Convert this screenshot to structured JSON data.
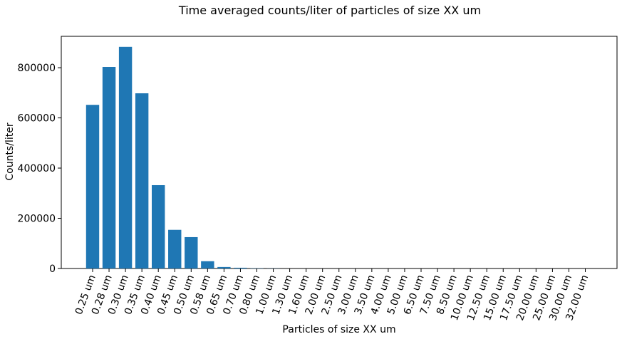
{
  "chart_data": {
    "type": "bar",
    "title": "Time averaged counts/liter of particles of size XX um",
    "xlabel": "Particles of size XX um",
    "ylabel": "Counts/liter",
    "ylim": [
      0,
      925000
    ],
    "yticks": [
      0,
      200000,
      400000,
      600000,
      800000
    ],
    "ytick_labels": [
      "0",
      "200000",
      "400000",
      "600000",
      "800000"
    ],
    "grid": false,
    "bar_color": "#1f77b4",
    "categories": [
      "0.25 um",
      "0.28 um",
      "0.30 um",
      "0.35 um",
      "0.40 um",
      "0.45 um",
      "0.50 um",
      "0.58 um",
      "0.65 um",
      "0.70 um",
      "0.80 um",
      "1.00 um",
      "1.30 um",
      "1.60 um",
      "2.00 um",
      "2.50 um",
      "3.00 um",
      "3.50 um",
      "4.00 um",
      "5.00 um",
      "6.50 um",
      "7.50 um",
      "8.50 um",
      "10.00 um",
      "12.50 um",
      "15.00 um",
      "17.50 um",
      "20.00 um",
      "25.00 um",
      "30.00 um",
      "32.00 um"
    ],
    "values": [
      652000,
      803000,
      883000,
      698000,
      332000,
      154000,
      125000,
      29000,
      6000,
      3000,
      1000,
      500,
      0,
      0,
      0,
      0,
      0,
      0,
      0,
      0,
      0,
      0,
      0,
      0,
      0,
      0,
      0,
      0,
      0,
      0,
      0
    ]
  }
}
